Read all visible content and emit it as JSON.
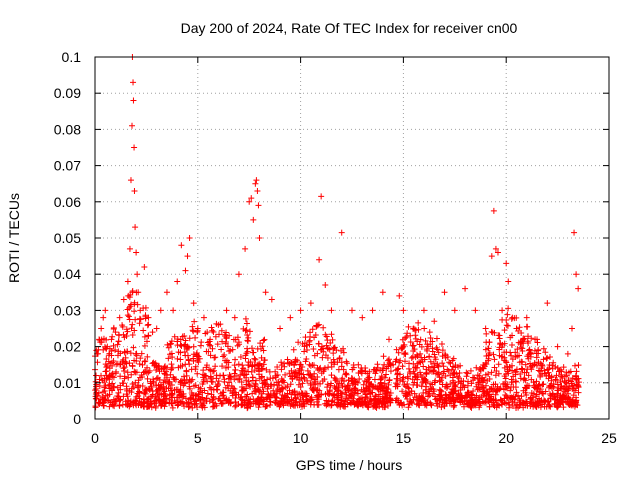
{
  "chart_data": {
    "type": "scatter",
    "title": "Day 200 of 2024, Rate Of TEC Index for receiver cn00",
    "xlabel": "GPS time / hours",
    "ylabel": "ROTI / TECUs",
    "xlim": [
      0,
      25
    ],
    "ylim": [
      0,
      0.1
    ],
    "x_ticks": [
      "0",
      "5",
      "10",
      "15",
      "20",
      "25"
    ],
    "y_ticks": [
      "0",
      "0.01",
      "0.02",
      "0.03",
      "0.04",
      "0.05",
      "0.06",
      "0.07",
      "0.08",
      "0.09",
      "0.1"
    ],
    "grid": true,
    "legend": "none",
    "marker": "plus",
    "color": "#ff0000",
    "series": [
      {
        "x": [
          0.05,
          0.1,
          0.2,
          0.3,
          0.4,
          0.5,
          0.6,
          0.8,
          1.0,
          1.2,
          1.4,
          1.6,
          1.7,
          1.75,
          1.8,
          1.82,
          1.85,
          1.87,
          1.9,
          1.92,
          1.95,
          2.0,
          2.05,
          2.1,
          2.2,
          2.4,
          2.6,
          2.8,
          3.0,
          3.2,
          3.5,
          3.8,
          4.0,
          4.2,
          4.4,
          4.5,
          4.6,
          4.8,
          5.0,
          5.3,
          5.6,
          6.0,
          6.4,
          6.8,
          7.0,
          7.3,
          7.5,
          7.6,
          7.7,
          7.8,
          7.85,
          7.9,
          7.95,
          8.0,
          8.3,
          8.6,
          9.0,
          9.5,
          10.0,
          10.5,
          10.9,
          11.0,
          11.2,
          11.5,
          12.0,
          12.5,
          13.0,
          13.5,
          14.0,
          14.3,
          14.5,
          14.8,
          15.0,
          15.5,
          16.0,
          16.5,
          17.0,
          17.5,
          18.0,
          18.5,
          19.0,
          19.3,
          19.4,
          19.5,
          19.6,
          19.8,
          20.0,
          20.1,
          20.3,
          20.5,
          21.0,
          21.5,
          22.0,
          22.5,
          23.0,
          23.2,
          23.3,
          23.4,
          23.5
        ],
        "y": [
          0.012,
          0.018,
          0.022,
          0.025,
          0.028,
          0.03,
          0.02,
          0.022,
          0.024,
          0.028,
          0.033,
          0.038,
          0.047,
          0.066,
          0.081,
          0.1,
          0.093,
          0.088,
          0.075,
          0.063,
          0.053,
          0.046,
          0.04,
          0.035,
          0.03,
          0.042,
          0.028,
          0.024,
          0.025,
          0.03,
          0.035,
          0.03,
          0.038,
          0.048,
          0.041,
          0.045,
          0.05,
          0.032,
          0.025,
          0.028,
          0.022,
          0.026,
          0.03,
          0.028,
          0.04,
          0.047,
          0.06,
          0.061,
          0.055,
          0.065,
          0.066,
          0.063,
          0.059,
          0.05,
          0.035,
          0.033,
          0.025,
          0.028,
          0.03,
          0.032,
          0.044,
          0.0615,
          0.037,
          0.03,
          0.0515,
          0.03,
          0.028,
          0.03,
          0.035,
          0.022,
          0.015,
          0.034,
          0.03,
          0.025,
          0.03,
          0.027,
          0.035,
          0.03,
          0.036,
          0.03,
          0.025,
          0.045,
          0.0575,
          0.047,
          0.046,
          0.03,
          0.043,
          0.038,
          0.028,
          0.025,
          0.028,
          0.022,
          0.032,
          0.02,
          0.018,
          0.025,
          0.0515,
          0.04,
          0.036
        ]
      }
    ]
  }
}
